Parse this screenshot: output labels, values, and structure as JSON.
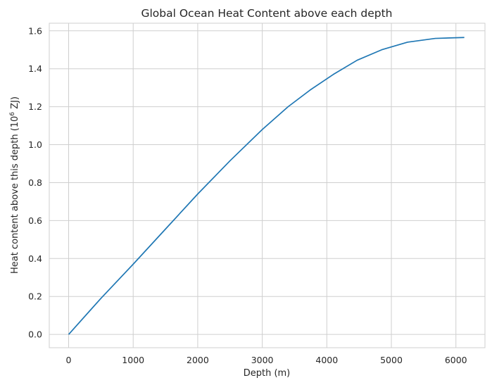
{
  "chart_data": {
    "type": "line",
    "title": "Global Ocean Heat Content above each depth",
    "xlabel": "Depth (m)",
    "ylabel_prefix": "Heat content above this depth (10",
    "ylabel_exponent": "6",
    "ylabel_suffix": " ZJ)",
    "xlim": [
      -300,
      6450
    ],
    "ylim": [
      -0.07,
      1.64
    ],
    "x_ticks": [
      0,
      1000,
      2000,
      3000,
      4000,
      5000,
      6000
    ],
    "x_tick_labels": [
      "0",
      "1000",
      "2000",
      "3000",
      "4000",
      "5000",
      "6000"
    ],
    "y_ticks": [
      0.0,
      0.2,
      0.4,
      0.6,
      0.8,
      1.0,
      1.2,
      1.4,
      1.6
    ],
    "y_tick_labels": [
      "0.0",
      "0.2",
      "0.4",
      "0.6",
      "0.8",
      "1.0",
      "1.2",
      "1.4",
      "1.6"
    ],
    "grid": true,
    "series": [
      {
        "color": "#1f77b4",
        "x": [
          0,
          500,
          1000,
          1500,
          2000,
          2500,
          3000,
          3400,
          3750,
          4100,
          4470,
          4850,
          5250,
          5680,
          6130
        ],
        "y": [
          0.0,
          0.19,
          0.37,
          0.555,
          0.74,
          0.915,
          1.08,
          1.2,
          1.29,
          1.37,
          1.445,
          1.5,
          1.54,
          1.56,
          1.565
        ]
      }
    ]
  }
}
